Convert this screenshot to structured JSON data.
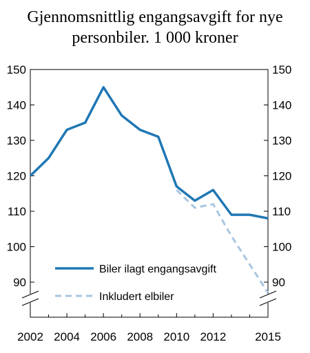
{
  "chart_data": {
    "type": "line",
    "title_line1": "Gjennomsnittlig engangsavgift for nye",
    "title_line2": "personbiler. 1 000 kroner",
    "xlabel": "",
    "ylabel": "",
    "ylim": [
      90,
      150
    ],
    "y_ticks": [
      90,
      100,
      110,
      120,
      130,
      140,
      150
    ],
    "x_ticks": [
      2002,
      2004,
      2006,
      2008,
      2010,
      2012,
      2015
    ],
    "xlim": [
      2002,
      2015
    ],
    "axis_break": true,
    "legend_position": "bottom-left",
    "series": [
      {
        "name": "Biler ilagt engangsavgift",
        "color": "#1F77B4",
        "style": "solid",
        "x": [
          2002,
          2003,
          2004,
          2005,
          2006,
          2007,
          2008,
          2009,
          2010,
          2011,
          2012,
          2013,
          2014,
          2015
        ],
        "values": [
          120,
          125,
          133,
          135,
          145,
          137,
          133,
          131,
          117,
          113,
          116,
          109,
          109,
          108
        ]
      },
      {
        "name": "Inkludert elbiler",
        "color": "#A8C6E0",
        "style": "dashed",
        "x": [
          2010,
          2011,
          2012,
          2013,
          2014,
          2015
        ],
        "values": [
          116,
          111,
          112,
          103,
          95,
          87
        ]
      }
    ]
  }
}
